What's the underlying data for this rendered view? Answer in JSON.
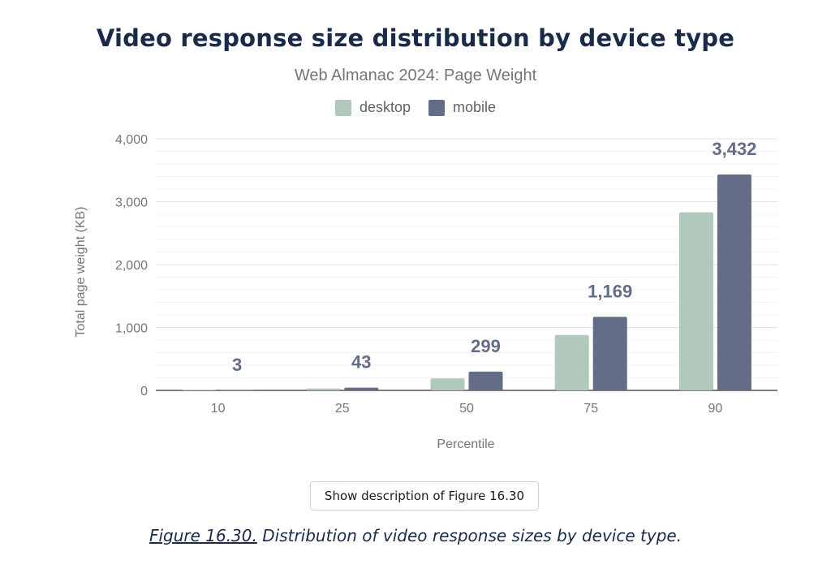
{
  "chart_data": {
    "type": "bar",
    "title": "Video response size distribution by device type",
    "subtitle": "Web Almanac 2024: Page Weight",
    "xlabel": "Percentile",
    "ylabel": "Total page weight (KB)",
    "categories": [
      "10",
      "25",
      "50",
      "75",
      "90"
    ],
    "series": [
      {
        "name": "desktop",
        "color": "#b0c9bb",
        "values": [
          2,
          30,
          190,
          880,
          2830
        ]
      },
      {
        "name": "mobile",
        "color": "#636d87",
        "values": [
          3,
          43,
          299,
          1169,
          3432
        ]
      }
    ],
    "data_labels": [
      "3",
      "43",
      "299",
      "1,169",
      "3,432"
    ],
    "ylim": [
      0,
      4000
    ],
    "yticks": [
      0,
      1000,
      2000,
      3000,
      4000
    ],
    "ytick_labels": [
      "0",
      "1,000",
      "2,000",
      "3,000",
      "4,000"
    ],
    "grid": true,
    "legend_position": "top-center"
  },
  "button": {
    "label": "Show description of Figure 16.30"
  },
  "caption": {
    "figure": "Figure 16.30.",
    "text": " Distribution of video response sizes by device type."
  }
}
